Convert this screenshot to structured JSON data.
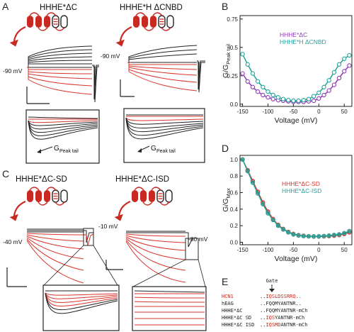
{
  "panel_letters": {
    "A": "A",
    "B": "B",
    "C": "C",
    "D": "D",
    "E": "E"
  },
  "panel_a": {
    "left_title": "HHHE*ΔC",
    "right_title": "HHHE*H ΔCNBD",
    "left_voltage": "-90 mV",
    "right_voltage": "-90 mV",
    "gpeak_main": "G",
    "gpeak_sub": "Peak tail"
  },
  "panel_c": {
    "left_title": "HHHE*ΔC-SD",
    "right_title": "HHHE*ΔC-ISD",
    "left_voltage": "-40 mV",
    "right_voltage_hold": "-10 mV",
    "right_voltage_tail": "-80 mV"
  },
  "panel_e": {
    "gate_label": "Gate",
    "rows": [
      {
        "name": "HCN1",
        "prefix": "..",
        "seq": "IQSLDSSRRQ..",
        "highlight": "",
        "rest": "",
        "red": true
      },
      {
        "name": "hEAG",
        "prefix": "..",
        "seq": "FQQMYANTNR..",
        "highlight": "",
        "rest": "",
        "red": false
      },
      {
        "name": "HHHE*ΔC",
        "prefix": "..",
        "seq": "FQQMYANTNR-mCh",
        "highlight": "",
        "rest": "",
        "red": false
      },
      {
        "name": "HHHE*ΔC SD",
        "prefix": "..",
        "seq": "",
        "highlight": "IQS",
        "rest": "YANTNR-mCh",
        "red": false
      },
      {
        "name": "HHHE*ΔC ISD",
        "prefix": "..",
        "seq": "",
        "highlight": "IQSMD",
        "rest": "ANTNR-mCh",
        "red": false
      }
    ]
  },
  "colors": {
    "purple": "#8e3bb5",
    "teal": "#1fa39a",
    "red": "#d8342a"
  },
  "chart_data": [
    {
      "type": "line",
      "panel": "B",
      "xlabel": "Voltage (mV)",
      "ylabel_main": "G/G",
      "ylabel_sub": "Peak tail",
      "xlim": [
        -155,
        65
      ],
      "ylim": [
        -0.02,
        0.78
      ],
      "xticks": [
        -150,
        -100,
        -50,
        0,
        50
      ],
      "yticks": [
        0.0,
        0.25,
        0.5,
        0.75
      ],
      "ytick_labels": [
        "0.0",
        "0.25",
        "0.5",
        "0.75"
      ],
      "legend_position": "top-center",
      "x": [
        -150,
        -140,
        -130,
        -120,
        -110,
        -100,
        -90,
        -80,
        -70,
        -60,
        -50,
        -40,
        -30,
        -20,
        -10,
        0,
        10,
        20,
        30,
        40,
        50,
        60
      ],
      "series": [
        {
          "name": "HHHE*ΔC",
          "color": "#8e3bb5",
          "values": [
            0.27,
            0.2,
            0.15,
            0.11,
            0.08,
            0.06,
            0.045,
            0.035,
            0.03,
            0.025,
            0.02,
            0.02,
            0.02,
            0.025,
            0.03,
            0.05,
            0.08,
            0.12,
            0.17,
            0.23,
            0.29,
            0.34
          ]
        },
        {
          "name": "HHHE*H ΔCNBD",
          "color": "#1fa39a",
          "values": [
            0.44,
            0.35,
            0.27,
            0.2,
            0.15,
            0.11,
            0.08,
            0.06,
            0.045,
            0.035,
            0.03,
            0.03,
            0.035,
            0.045,
            0.07,
            0.1,
            0.15,
            0.21,
            0.28,
            0.35,
            0.4,
            0.43
          ]
        }
      ]
    },
    {
      "type": "line",
      "panel": "D",
      "xlabel": "Voltage (mV)",
      "ylabel_main": "G/G",
      "ylabel_sub": "Max",
      "xlim": [
        -155,
        65
      ],
      "ylim": [
        -0.03,
        1.05
      ],
      "xticks": [
        -150,
        -100,
        -50,
        0,
        50
      ],
      "yticks": [
        0.0,
        0.2,
        0.4,
        0.6,
        0.8,
        1.0
      ],
      "ytick_labels": [
        "0.0",
        "0.2",
        "0.4",
        "0.6",
        "0.8",
        "1.0"
      ],
      "legend_position": "center-right",
      "x": [
        -150,
        -140,
        -130,
        -120,
        -110,
        -100,
        -90,
        -80,
        -70,
        -60,
        -50,
        -40,
        -30,
        -20,
        -10,
        0,
        10,
        20,
        30,
        40,
        50,
        60
      ],
      "series": [
        {
          "name": "HHHE*ΔC-SD",
          "color": "#d8342a",
          "values": [
            1.0,
            0.87,
            0.74,
            0.61,
            0.48,
            0.37,
            0.28,
            0.21,
            0.16,
            0.125,
            0.1,
            0.085,
            0.078,
            0.073,
            0.07,
            0.07,
            0.072,
            0.075,
            0.08,
            0.088,
            0.1,
            0.12
          ]
        },
        {
          "name": "HHHE*ΔC-ISD",
          "color": "#1fa39a",
          "values": [
            1.0,
            0.86,
            0.72,
            0.59,
            0.46,
            0.35,
            0.27,
            0.2,
            0.155,
            0.12,
            0.095,
            0.082,
            0.075,
            0.072,
            0.07,
            0.072,
            0.075,
            0.08,
            0.088,
            0.095,
            0.11,
            0.135
          ]
        }
      ]
    }
  ]
}
